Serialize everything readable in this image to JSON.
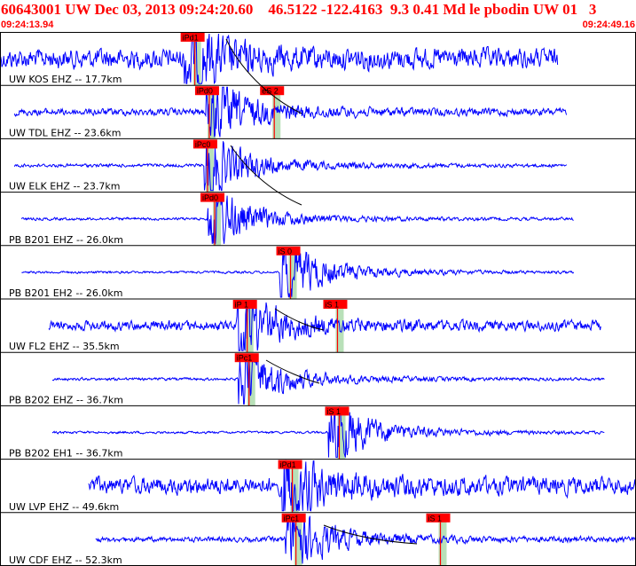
{
  "header": {
    "title": "60643001 UW Dec 03, 2013 09:24:20.60    46.5122 -122.4163  9.3 0.41 Md le pbodin UW 01   3",
    "start_time": "09:24:13.94",
    "end_time": "09:24:49.16"
  },
  "colors": {
    "trace": "#0000ff",
    "pick_box": "#ff0000",
    "pick_text": "#000000",
    "pick_window": "#b8e0b8",
    "theoretical_curve": "#000000",
    "frame": "#000000",
    "header_text": "#ff0000"
  },
  "chart_data": {
    "type": "line",
    "x_range_seconds": [
      0,
      35.22
    ],
    "traces": [
      {
        "label": "UW KOS EHZ -- 17.7km",
        "data_start": 0.0,
        "data_end": 30.9,
        "amp": 0.7,
        "onset": 10.2,
        "picks": [
          {
            "text": "iPd1",
            "t": 10.2
          }
        ]
      },
      {
        "label": "UW TDL EHZ -- 23.6km",
        "data_start": 0.8,
        "data_end": 31.4,
        "amp": 0.25,
        "onset": 11.4,
        "picks": [
          {
            "text": "iPd0",
            "t": 11.0
          },
          {
            "text": "eS 2",
            "t": 14.6
          }
        ]
      },
      {
        "label": "UW ELK EHZ -- 23.7km",
        "data_start": 0.8,
        "data_end": 31.4,
        "amp": 0.12,
        "onset": 11.3,
        "picks": [
          {
            "text": "iPc0",
            "t": 10.9
          }
        ]
      },
      {
        "label": "PB B201 EHZ -- 26.0km",
        "data_start": 1.2,
        "data_end": 31.8,
        "amp": 0.1,
        "onset": 11.5,
        "picks": [
          {
            "text": "iPd0",
            "t": 11.3
          }
        ]
      },
      {
        "label": "PB B201 EH2 -- 26.0km",
        "data_start": 1.2,
        "data_end": 31.8,
        "amp": 0.06,
        "onset": 15.5,
        "picks": [
          {
            "text": "iS 0",
            "t": 15.5
          }
        ]
      },
      {
        "label": "UW FL2 EHZ -- 35.5km",
        "data_start": 2.7,
        "data_end": 33.3,
        "amp": 0.35,
        "onset": 13.1,
        "picks": [
          {
            "text": "iP 1",
            "t": 13.1
          },
          {
            "text": "iS 1",
            "t": 18.1
          }
        ]
      },
      {
        "label": "PB B202 EHZ -- 36.7km",
        "data_start": 2.9,
        "data_end": 33.5,
        "amp": 0.1,
        "onset": 13.2,
        "picks": [
          {
            "text": "iPc1",
            "t": 13.2
          }
        ]
      },
      {
        "label": "PB B202 EH1 -- 36.7km",
        "data_start": 2.9,
        "data_end": 33.5,
        "amp": 0.02,
        "onset": 18.2,
        "picks": [
          {
            "text": "iS 1",
            "t": 18.2
          }
        ]
      },
      {
        "label": "UW LVP EHZ -- 49.6km",
        "data_start": 4.9,
        "data_end": 35.2,
        "amp": 0.6,
        "onset": 15.6,
        "picks": [
          {
            "text": "iPd1",
            "t": 15.6
          }
        ]
      },
      {
        "label": "UW CDF EHZ -- 52.3km",
        "data_start": 5.3,
        "data_end": 35.2,
        "amp": 0.18,
        "onset": 15.8,
        "picks": [
          {
            "text": "iPc1",
            "t": 15.8
          },
          {
            "text": "iS 1",
            "t": 23.8
          }
        ]
      }
    ]
  }
}
